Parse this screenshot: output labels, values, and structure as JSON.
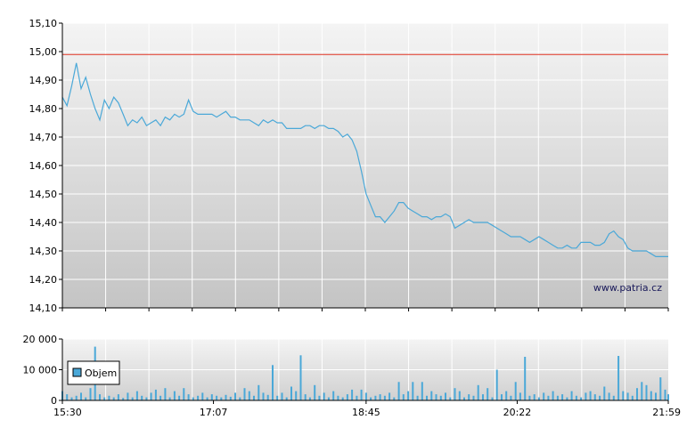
{
  "chart_data": [
    {
      "type": "line",
      "title": "",
      "xlabel": "",
      "ylabel": "",
      "ylim": [
        14.1,
        15.1
      ],
      "y_ticks": [
        14.1,
        14.2,
        14.3,
        14.4,
        14.5,
        14.6,
        14.7,
        14.8,
        14.9,
        15.0,
        15.1
      ],
      "y_tick_labels": [
        "14,10",
        "14,20",
        "14,30",
        "14,40",
        "14,50",
        "14,60",
        "14,70",
        "14,80",
        "14,90",
        "15,00",
        "15,10"
      ],
      "grid": true,
      "reference_line": {
        "value": 14.99,
        "color": "#e03020"
      },
      "watermark": "www.patria.cz",
      "series_color": "#4aa8d8",
      "series": [
        {
          "x": [
            "15:30",
            "15:33",
            "15:36",
            "15:39",
            "15:42",
            "15:45",
            "15:48",
            "15:51",
            "15:54",
            "15:57",
            "16:00",
            "16:03",
            "16:06",
            "16:09",
            "16:12",
            "16:15",
            "16:18",
            "16:21",
            "16:24",
            "16:27",
            "16:30",
            "16:33",
            "16:36",
            "16:39",
            "16:42",
            "16:45",
            "16:48",
            "16:51",
            "16:54",
            "16:57",
            "17:00",
            "17:03",
            "17:06",
            "17:09",
            "17:12",
            "17:15",
            "17:18",
            "17:21",
            "17:24",
            "17:27",
            "17:30",
            "17:33",
            "17:36",
            "17:39",
            "17:42",
            "17:45",
            "17:48",
            "17:51",
            "17:54",
            "17:57",
            "18:00",
            "18:03",
            "18:06",
            "18:09",
            "18:12",
            "18:15",
            "18:18",
            "18:21",
            "18:24",
            "18:27",
            "18:30",
            "18:33",
            "18:36",
            "18:39",
            "18:42",
            "18:45",
            "18:48",
            "18:51",
            "18:54",
            "18:57",
            "19:00",
            "19:03",
            "19:06",
            "19:09",
            "19:12",
            "19:15",
            "19:18",
            "19:21",
            "19:24",
            "19:27",
            "19:30",
            "19:33",
            "19:36",
            "19:39",
            "19:42",
            "19:45",
            "19:48",
            "19:51",
            "19:54",
            "19:57",
            "20:00",
            "20:03",
            "20:06",
            "20:09",
            "20:12",
            "20:15",
            "20:18",
            "20:21",
            "20:24",
            "20:27",
            "20:30",
            "20:33",
            "20:36",
            "20:39",
            "20:42",
            "20:45",
            "20:48",
            "20:51",
            "20:54",
            "20:57",
            "21:00",
            "21:03",
            "21:06",
            "21:09",
            "21:12",
            "21:15",
            "21:18",
            "21:21",
            "21:24",
            "21:27",
            "21:30",
            "21:33",
            "21:36",
            "21:39",
            "21:42",
            "21:45",
            "21:48",
            "21:51",
            "21:54",
            "21:57",
            "21:59"
          ],
          "values": [
            14.84,
            14.81,
            14.88,
            14.96,
            14.87,
            14.91,
            14.85,
            14.8,
            14.76,
            14.83,
            14.8,
            14.84,
            14.82,
            14.78,
            14.74,
            14.76,
            14.75,
            14.77,
            14.74,
            14.75,
            14.76,
            14.74,
            14.77,
            14.76,
            14.78,
            14.77,
            14.78,
            14.83,
            14.79,
            14.78,
            14.78,
            14.78,
            14.78,
            14.77,
            14.78,
            14.79,
            14.77,
            14.77,
            14.76,
            14.76,
            14.76,
            14.75,
            14.74,
            14.76,
            14.75,
            14.76,
            14.75,
            14.75,
            14.73,
            14.73,
            14.73,
            14.73,
            14.74,
            14.74,
            14.73,
            14.74,
            14.74,
            14.73,
            14.73,
            14.72,
            14.7,
            14.71,
            14.69,
            14.65,
            14.58,
            14.5,
            14.46,
            14.42,
            14.42,
            14.4,
            14.42,
            14.44,
            14.47,
            14.47,
            14.45,
            14.44,
            14.43,
            14.42,
            14.42,
            14.41,
            14.42,
            14.42,
            14.43,
            14.42,
            14.38,
            14.39,
            14.4,
            14.41,
            14.4,
            14.4,
            14.4,
            14.4,
            14.39,
            14.38,
            14.37,
            14.36,
            14.35,
            14.35,
            14.35,
            14.34,
            14.33,
            14.34,
            14.35,
            14.34,
            14.33,
            14.32,
            14.31,
            14.31,
            14.32,
            14.31,
            14.31,
            14.33,
            14.33,
            14.33,
            14.32,
            14.32,
            14.33,
            14.36,
            14.37,
            14.35,
            14.34,
            14.31,
            14.3,
            14.3,
            14.3,
            14.3,
            14.29,
            14.28,
            14.28,
            14.28,
            14.28
          ]
        }
      ]
    },
    {
      "type": "bar",
      "title": "",
      "xlabel": "",
      "ylabel": "",
      "ylim": [
        0,
        20000
      ],
      "y_ticks": [
        0,
        10000,
        20000
      ],
      "y_tick_labels": [
        "0",
        "10 000",
        "20 000"
      ],
      "grid": true,
      "legend": {
        "position": "left",
        "label": "Objem",
        "color": "#4aa8d8"
      },
      "x_ticks": [
        "15:30",
        "17:07",
        "18:45",
        "20:22",
        "21:59"
      ],
      "series": [
        {
          "name": "Objem",
          "x": [
            "15:30",
            "15:33",
            "15:36",
            "15:39",
            "15:42",
            "15:45",
            "15:48",
            "15:51",
            "15:54",
            "15:57",
            "16:00",
            "16:03",
            "16:06",
            "16:09",
            "16:12",
            "16:15",
            "16:18",
            "16:21",
            "16:24",
            "16:27",
            "16:30",
            "16:33",
            "16:36",
            "16:39",
            "16:42",
            "16:45",
            "16:48",
            "16:51",
            "16:54",
            "16:57",
            "17:00",
            "17:03",
            "17:06",
            "17:09",
            "17:12",
            "17:15",
            "17:18",
            "17:21",
            "17:24",
            "17:27",
            "17:30",
            "17:33",
            "17:36",
            "17:39",
            "17:42",
            "17:45",
            "17:48",
            "17:51",
            "17:54",
            "17:57",
            "18:00",
            "18:03",
            "18:06",
            "18:09",
            "18:12",
            "18:15",
            "18:18",
            "18:21",
            "18:24",
            "18:27",
            "18:30",
            "18:33",
            "18:36",
            "18:39",
            "18:42",
            "18:45",
            "18:48",
            "18:51",
            "18:54",
            "18:57",
            "19:00",
            "19:03",
            "19:06",
            "19:09",
            "19:12",
            "19:15",
            "19:18",
            "19:21",
            "19:24",
            "19:27",
            "19:30",
            "19:33",
            "19:36",
            "19:39",
            "19:42",
            "19:45",
            "19:48",
            "19:51",
            "19:54",
            "19:57",
            "20:00",
            "20:03",
            "20:06",
            "20:09",
            "20:12",
            "20:15",
            "20:18",
            "20:21",
            "20:24",
            "20:27",
            "20:30",
            "20:33",
            "20:36",
            "20:39",
            "20:42",
            "20:45",
            "20:48",
            "20:51",
            "20:54",
            "20:57",
            "21:00",
            "21:03",
            "21:06",
            "21:09",
            "21:12",
            "21:15",
            "21:18",
            "21:21",
            "21:24",
            "21:27",
            "21:30",
            "21:33",
            "21:36",
            "21:39",
            "21:42",
            "21:45",
            "21:48",
            "21:51",
            "21:54",
            "21:57",
            "21:59"
          ],
          "values": [
            3000,
            2000,
            1000,
            1500,
            2500,
            1000,
            4000,
            17500,
            2000,
            1000,
            1500,
            1000,
            2000,
            800,
            2500,
            1000,
            3000,
            1500,
            1000,
            2500,
            3500,
            1500,
            4000,
            1000,
            3000,
            1500,
            4000,
            2000,
            1000,
            1500,
            2500,
            1000,
            2000,
            1500,
            1000,
            1800,
            1200,
            2500,
            1000,
            4000,
            3000,
            1500,
            5000,
            2500,
            1800,
            11500,
            1500,
            2500,
            1000,
            4500,
            3000,
            14700,
            2000,
            1000,
            5000,
            1500,
            2500,
            1000,
            3000,
            1500,
            1000,
            2000,
            3500,
            1500,
            3500,
            2500,
            1000,
            1500,
            2000,
            1500,
            2500,
            1000,
            6000,
            2000,
            3000,
            6000,
            1500,
            6000,
            1500,
            3000,
            2000,
            1500,
            2500,
            1000,
            4000,
            3000,
            1000,
            2000,
            1500,
            5000,
            2000,
            4000,
            1000,
            10000,
            2000,
            3000,
            1500,
            6000,
            2500,
            14200,
            1500,
            2000,
            1000,
            2500,
            1500,
            3000,
            1500,
            2000,
            1000,
            3000,
            1500,
            1000,
            2500,
            3000,
            2000,
            1500,
            4500,
            2500,
            1500,
            14500,
            3000,
            2500,
            1500,
            4000,
            6000,
            5000,
            3000,
            2500,
            7500,
            3500,
            2000
          ]
        }
      ]
    }
  ]
}
